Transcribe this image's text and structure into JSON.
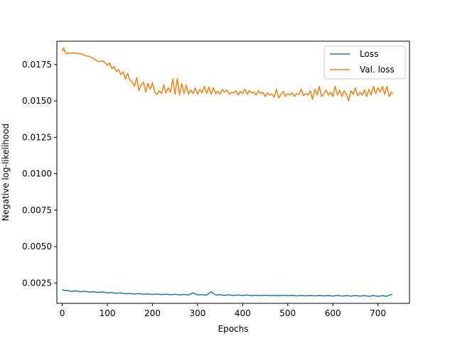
{
  "chart_data": {
    "type": "line",
    "xlabel": "Epochs",
    "ylabel": "Negative log-likelihood",
    "xlim": [
      -12,
      770
    ],
    "ylim": [
      0.0011,
      0.0191
    ],
    "xticks": [
      0,
      100,
      200,
      300,
      400,
      500,
      600,
      700
    ],
    "xtick_labels": [
      "0",
      "100",
      "200",
      "300",
      "400",
      "500",
      "600",
      "700"
    ],
    "yticks": [
      0.0025,
      0.005,
      0.0075,
      0.01,
      0.0125,
      0.015,
      0.0175
    ],
    "ytick_labels": [
      "0.0025",
      "0.0050",
      "0.0075",
      "0.0100",
      "0.0125",
      "0.0150",
      "0.0175"
    ],
    "grid": false,
    "legend_position": "top-right",
    "series": [
      {
        "name": "Loss",
        "color": "#1f77b4",
        "x": [
          0,
          5,
          10,
          20,
          30,
          40,
          50,
          60,
          70,
          80,
          90,
          100,
          110,
          120,
          130,
          140,
          150,
          160,
          170,
          180,
          190,
          200,
          210,
          220,
          230,
          240,
          250,
          260,
          270,
          280,
          290,
          300,
          310,
          320,
          330,
          340,
          350,
          360,
          370,
          380,
          390,
          400,
          410,
          420,
          430,
          440,
          450,
          460,
          470,
          480,
          490,
          500,
          510,
          520,
          530,
          540,
          550,
          560,
          570,
          580,
          590,
          600,
          610,
          620,
          630,
          640,
          650,
          660,
          670,
          680,
          690,
          700,
          710,
          720,
          725,
          732
        ],
        "y": [
          0.00205,
          0.00198,
          0.002,
          0.00192,
          0.00196,
          0.0019,
          0.00193,
          0.00187,
          0.0019,
          0.00185,
          0.00188,
          0.00182,
          0.00184,
          0.00179,
          0.00182,
          0.00176,
          0.00178,
          0.00174,
          0.00177,
          0.00172,
          0.00175,
          0.00171,
          0.00174,
          0.0017,
          0.00173,
          0.00169,
          0.00172,
          0.00168,
          0.00171,
          0.00167,
          0.00182,
          0.00168,
          0.0017,
          0.00166,
          0.0019,
          0.00167,
          0.00169,
          0.00165,
          0.00168,
          0.00164,
          0.00167,
          0.00164,
          0.00167,
          0.00163,
          0.00166,
          0.00163,
          0.00166,
          0.00162,
          0.00165,
          0.00162,
          0.00165,
          0.00162,
          0.00165,
          0.00161,
          0.00164,
          0.00161,
          0.00164,
          0.00161,
          0.00164,
          0.00161,
          0.00163,
          0.0016,
          0.00164,
          0.0016,
          0.00163,
          0.0016,
          0.00163,
          0.0016,
          0.00163,
          0.00159,
          0.00163,
          0.00159,
          0.00162,
          0.00159,
          0.00166,
          0.00172
        ]
      },
      {
        "name": "Val. loss",
        "color": "#ff7f0e",
        "x": [
          0,
          3,
          6,
          10,
          15,
          20,
          25,
          30,
          40,
          50,
          60,
          70,
          80,
          90,
          100,
          105,
          110,
          115,
          120,
          125,
          130,
          135,
          140,
          145,
          150,
          155,
          160,
          165,
          170,
          175,
          180,
          185,
          190,
          195,
          200,
          205,
          210,
          215,
          220,
          225,
          230,
          235,
          240,
          245,
          250,
          255,
          260,
          265,
          270,
          275,
          280,
          285,
          290,
          295,
          300,
          305,
          310,
          315,
          320,
          325,
          330,
          335,
          340,
          345,
          350,
          355,
          360,
          365,
          370,
          375,
          380,
          385,
          390,
          395,
          400,
          405,
          410,
          415,
          420,
          425,
          430,
          435,
          440,
          445,
          450,
          455,
          460,
          465,
          470,
          475,
          480,
          485,
          490,
          495,
          500,
          505,
          510,
          515,
          520,
          525,
          530,
          535,
          540,
          545,
          550,
          555,
          560,
          565,
          570,
          575,
          580,
          585,
          590,
          595,
          600,
          605,
          610,
          615,
          620,
          625,
          630,
          635,
          640,
          645,
          650,
          655,
          660,
          665,
          670,
          675,
          680,
          685,
          690,
          695,
          700,
          705,
          710,
          715,
          720,
          725,
          730,
          733
        ],
        "y": [
          0.0184,
          0.01865,
          0.01835,
          0.01822,
          0.0183,
          0.01825,
          0.01832,
          0.01826,
          0.01825,
          0.01812,
          0.01805,
          0.0179,
          0.0177,
          0.01775,
          0.01745,
          0.0176,
          0.0172,
          0.01735,
          0.017,
          0.01715,
          0.0168,
          0.017,
          0.0165,
          0.0169,
          0.0164,
          0.0163,
          0.016,
          0.0166,
          0.0157,
          0.0161,
          0.0163,
          0.0156,
          0.0162,
          0.0158,
          0.01625,
          0.0156,
          0.01545,
          0.0157,
          0.0155,
          0.0161,
          0.01555,
          0.0159,
          0.0156,
          0.0165,
          0.01545,
          0.01655,
          0.0154,
          0.0162,
          0.0155,
          0.0161,
          0.01545,
          0.01575,
          0.0155,
          0.0159,
          0.01545,
          0.0158,
          0.01555,
          0.016,
          0.0155,
          0.01595,
          0.01545,
          0.0159,
          0.0155,
          0.01565,
          0.01545,
          0.0158,
          0.0156,
          0.01575,
          0.01545,
          0.0156,
          0.01555,
          0.0157,
          0.0154,
          0.01565,
          0.0155,
          0.0158,
          0.01545,
          0.0157,
          0.01555,
          0.0156,
          0.0154,
          0.0157,
          0.0155,
          0.0156,
          0.0153,
          0.01555,
          0.0154,
          0.01545,
          0.01525,
          0.0158,
          0.0152,
          0.01545,
          0.01565,
          0.0153,
          0.0155,
          0.0154,
          0.01555,
          0.0153,
          0.0155,
          0.01545,
          0.0158,
          0.01535,
          0.0155,
          0.0154,
          0.0157,
          0.0151,
          0.0158,
          0.0154,
          0.016,
          0.0153,
          0.0155,
          0.01575,
          0.0154,
          0.0156,
          0.0153,
          0.016,
          0.0154,
          0.01575,
          0.0153,
          0.0157,
          0.01545,
          0.015,
          0.0157,
          0.01545,
          0.0159,
          0.01535,
          0.0156,
          0.0154,
          0.01575,
          0.0153,
          0.0158,
          0.0154,
          0.016,
          0.0155,
          0.0159,
          0.0156,
          0.016,
          0.01545,
          0.016,
          0.0153,
          0.0156,
          0.0155
        ]
      }
    ]
  }
}
